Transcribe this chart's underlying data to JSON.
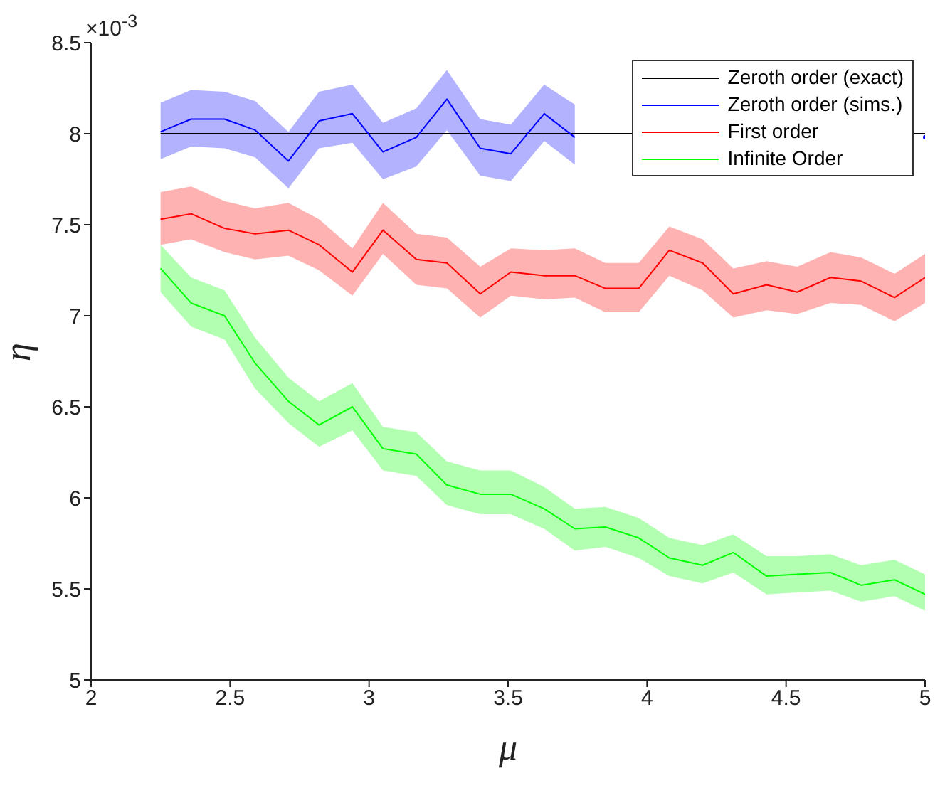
{
  "chart_data": {
    "type": "line",
    "xlabel": "μ",
    "ylabel": "η",
    "annotations": [
      "×10$^{-3}$"
    ],
    "x": [
      2.25,
      2.36,
      2.48,
      2.59,
      2.71,
      2.82,
      2.94,
      3.05,
      3.17,
      3.28,
      3.4,
      3.51,
      3.63,
      3.74,
      3.85,
      3.97,
      4.08,
      4.2,
      4.31,
      4.43,
      4.54,
      4.66,
      4.77,
      4.89,
      5.0
    ],
    "xlim": [
      2,
      5
    ],
    "xticks": [
      2,
      2.5,
      3,
      3.5,
      4,
      4.5,
      5
    ],
    "ylim": [
      5,
      8.5
    ],
    "yticks": [
      5,
      5.5,
      6,
      6.5,
      7,
      7.5,
      8,
      8.5
    ],
    "grid": false,
    "legend": "top right",
    "marker": "none",
    "line_style": "solid",
    "series": [
      {
        "name": "Zeroth order (exact)",
        "color": "#000000",
        "x": [
          2.25,
          5.0
        ],
        "values": [
          8,
          8
        ]
      },
      {
        "name": "Zeroth order (sims.)",
        "color": "#0000ff",
        "values": [
          8.01,
          8.08,
          8.08,
          8.02,
          7.85,
          8.07,
          8.11,
          7.9,
          7.98,
          8.19,
          7.92,
          7.89,
          8.11,
          7.98,
          null,
          null,
          null,
          null,
          null,
          null,
          null,
          null,
          null,
          null,
          7.98
        ],
        "upper": [
          8.17,
          8.24,
          8.23,
          8.18,
          8.01,
          8.23,
          8.27,
          8.06,
          8.14,
          8.35,
          8.08,
          8.05,
          8.27,
          8.16,
          null,
          null,
          null,
          null,
          null,
          null,
          null,
          null,
          null,
          null,
          null
        ],
        "lower": [
          7.86,
          7.93,
          7.92,
          7.87,
          7.7,
          7.92,
          7.95,
          7.75,
          7.82,
          8.02,
          7.77,
          7.74,
          7.96,
          7.83,
          null,
          null,
          null,
          null,
          null,
          null,
          null,
          null,
          null,
          null,
          null
        ]
      },
      {
        "name": "First order",
        "color": "#ff0000",
        "values": [
          7.53,
          7.56,
          7.48,
          7.45,
          7.47,
          7.39,
          7.24,
          7.47,
          7.31,
          7.29,
          7.12,
          7.24,
          7.22,
          7.22,
          7.15,
          7.15,
          7.36,
          7.29,
          7.12,
          7.17,
          7.13,
          7.21,
          7.19,
          7.1,
          7.21
        ],
        "upper": [
          7.68,
          7.71,
          7.63,
          7.59,
          7.62,
          7.53,
          7.37,
          7.62,
          7.45,
          7.43,
          7.27,
          7.37,
          7.36,
          7.37,
          7.29,
          7.29,
          7.49,
          7.42,
          7.26,
          7.3,
          7.27,
          7.35,
          7.32,
          7.23,
          7.34
        ],
        "lower": [
          7.39,
          7.42,
          7.35,
          7.31,
          7.33,
          7.25,
          7.11,
          7.34,
          7.17,
          7.15,
          6.99,
          7.11,
          7.09,
          7.1,
          7.02,
          7.02,
          7.22,
          7.14,
          6.99,
          7.03,
          7.01,
          7.07,
          7.06,
          6.97,
          7.07
        ]
      },
      {
        "name": "Infinite Order",
        "color": "#00ff00",
        "values": [
          7.26,
          7.07,
          7.0,
          6.74,
          6.53,
          6.4,
          6.5,
          6.27,
          6.24,
          6.07,
          6.02,
          6.02,
          5.94,
          5.83,
          5.84,
          5.78,
          5.67,
          5.63,
          5.7,
          5.57,
          5.58,
          5.59,
          5.52,
          5.55,
          5.47
        ],
        "upper": [
          7.39,
          7.21,
          7.14,
          6.88,
          6.66,
          6.53,
          6.63,
          6.39,
          6.36,
          6.2,
          6.15,
          6.15,
          6.06,
          5.94,
          5.95,
          5.89,
          5.78,
          5.74,
          5.8,
          5.68,
          5.68,
          5.69,
          5.63,
          5.66,
          5.58
        ],
        "lower": [
          7.13,
          6.94,
          6.87,
          6.6,
          6.41,
          6.28,
          6.37,
          6.15,
          6.12,
          5.96,
          5.91,
          5.91,
          5.83,
          5.71,
          5.73,
          5.67,
          5.57,
          5.53,
          5.59,
          5.47,
          5.48,
          5.49,
          5.43,
          5.46,
          5.38
        ]
      }
    ]
  }
}
